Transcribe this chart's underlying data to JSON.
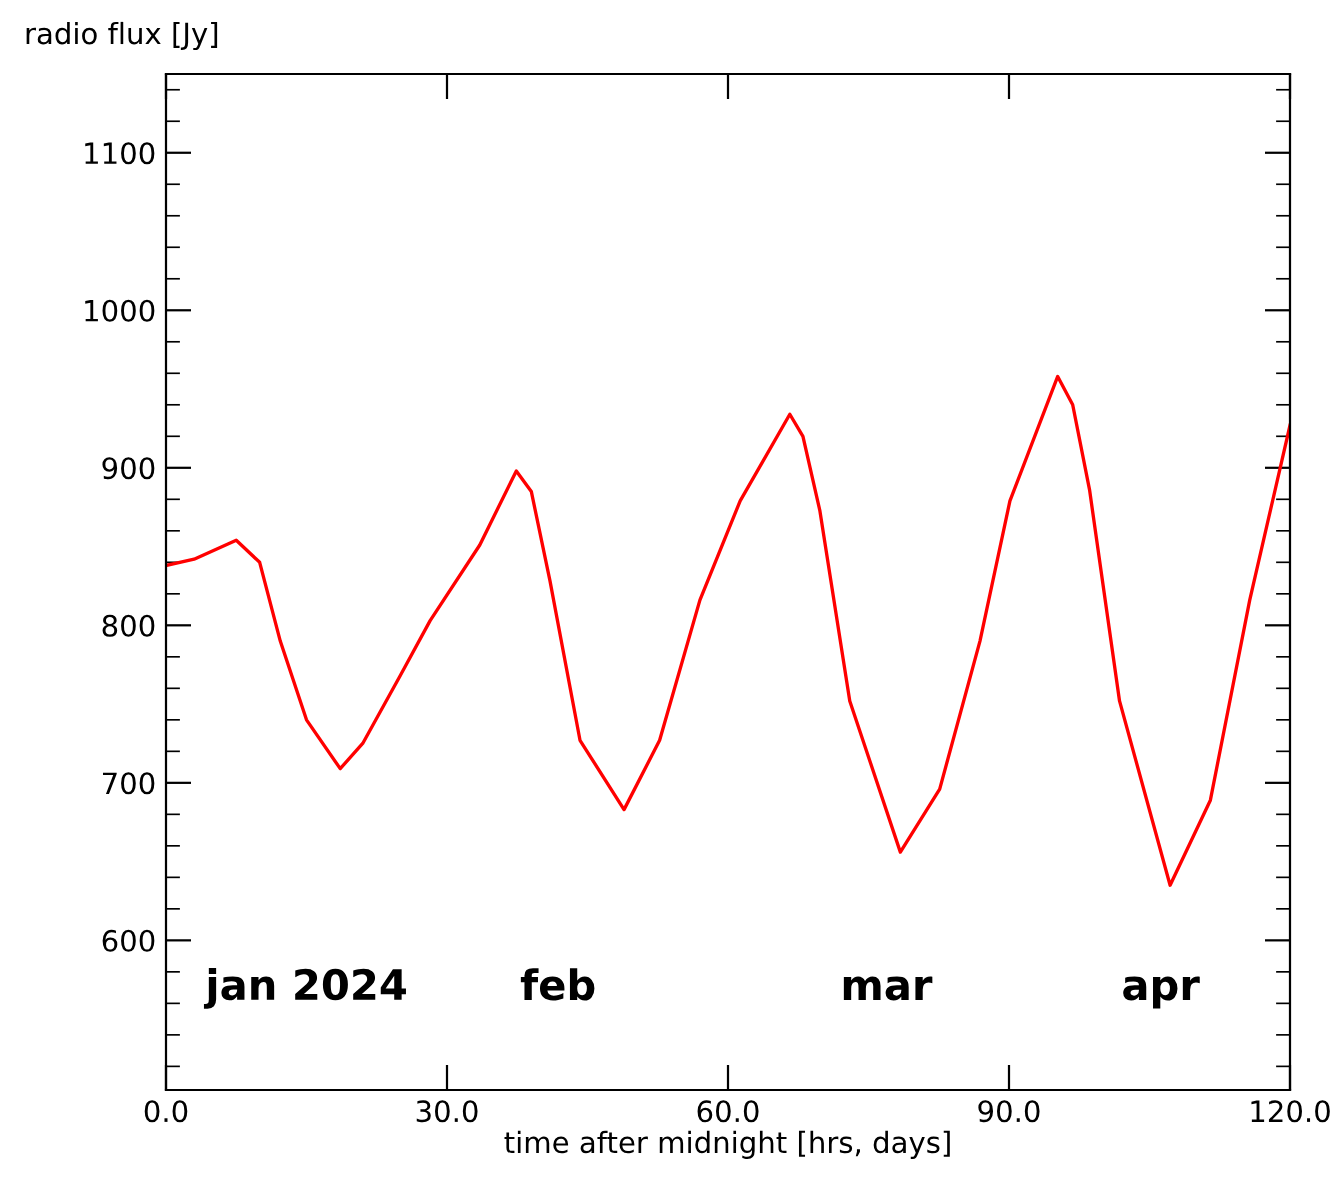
{
  "chart_data": {
    "type": "line",
    "ylabel": "radio flux [Jy]",
    "xlabel": "time after midnight [hrs, days]",
    "x": [
      0,
      3,
      7.5,
      10,
      12.2,
      15,
      18.6,
      21,
      25,
      28.2,
      33.5,
      37.4,
      39,
      41,
      44.2,
      48.9,
      52.7,
      57,
      61.3,
      66.6,
      68,
      69.8,
      73,
      78.4,
      82.6,
      86.9,
      90.1,
      95.2,
      96.8,
      98.6,
      101.8,
      107.2,
      111.5,
      115.7,
      120
    ],
    "series": [
      {
        "color": "#ff0000",
        "values": [
          838,
          842,
          854,
          840,
          790,
          740,
          709,
          725,
          768,
          803,
          851,
          898,
          885,
          828,
          727,
          683,
          727,
          816,
          879,
          934,
          920,
          873,
          752,
          656,
          696,
          790,
          879,
          958,
          940,
          886,
          752,
          635,
          689,
          816,
          927
        ]
      }
    ],
    "xlim": [
      0,
      120
    ],
    "ylim": [
      505,
      1150
    ],
    "xticks": [
      {
        "value": 0,
        "label": "0.0"
      },
      {
        "value": 30,
        "label": "30.0"
      },
      {
        "value": 60,
        "label": "60.0"
      },
      {
        "value": 90,
        "label": "90.0"
      },
      {
        "value": 120,
        "label": "120.0"
      }
    ],
    "yticks": [
      600,
      700,
      800,
      900,
      1000,
      1100
    ],
    "annotations": [
      "jan 2024",
      "feb",
      "mar",
      "apr"
    ],
    "grid": false,
    "legend": false,
    "marker": "none",
    "line_style": "solid"
  }
}
